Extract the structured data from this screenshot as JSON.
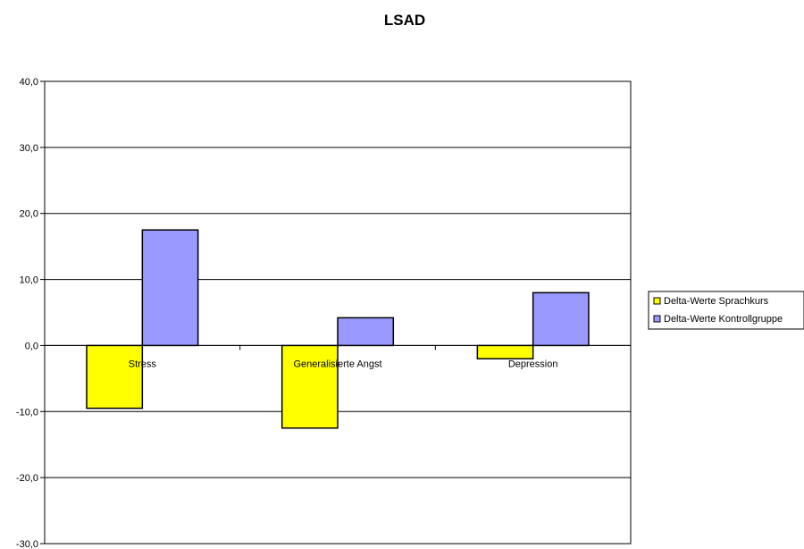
{
  "chart_data": {
    "type": "bar",
    "title": "LSAD",
    "xlabel": "",
    "ylabel": "",
    "categories": [
      "Stress",
      "Generalisierte Angst",
      "Depression"
    ],
    "series": [
      {
        "name": "Delta-Werte Sprachkurs",
        "values": [
          -9.5,
          -12.5,
          -2.0
        ],
        "color": "#ffff00"
      },
      {
        "name": "Delta-Werte Kontrollgruppe",
        "values": [
          17.5,
          4.2,
          8.0
        ],
        "color": "#9999ff"
      }
    ],
    "ylim": [
      -30,
      40
    ],
    "yticks": [
      -30,
      -20,
      -10,
      0,
      10,
      20,
      30,
      40
    ],
    "ytick_labels": [
      "-30,0",
      "-20,0",
      "-10,0",
      "0,0",
      "10,0",
      "20,0",
      "30,0",
      "40,0"
    ],
    "grid": true,
    "legend_position": "right"
  }
}
